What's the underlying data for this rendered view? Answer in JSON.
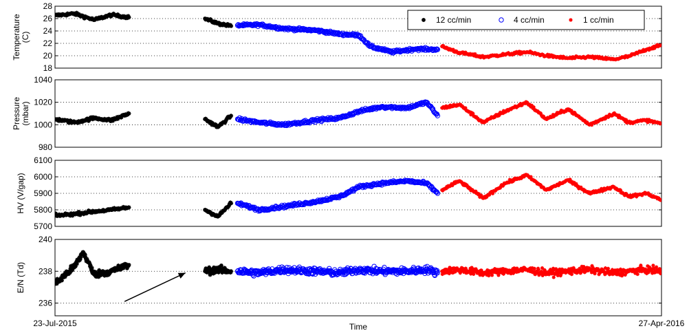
{
  "chart_data": {
    "type": "scatter",
    "xlabel": "Time",
    "x_start_label": "23-Jul-2015",
    "x_end_label": "27-Apr-2016",
    "x_range": [
      "2015-07-23",
      "2016-04-27"
    ],
    "grid": "horizontal dotted",
    "legend": {
      "placement": "top-right",
      "items": [
        {
          "label": "12 cc/min",
          "series": "12 cc/min",
          "color": "#000000",
          "marker": "star"
        },
        {
          "label": "4 cc/min",
          "series": "4 cc/min",
          "color": "#0000ff",
          "marker": "circle"
        },
        {
          "label": "1 cc/min",
          "series": "1 cc/min",
          "color": "#ff0000",
          "marker": "plus-star"
        }
      ]
    },
    "panels": [
      {
        "id": "temperature",
        "ylabel": "Temperature (C)",
        "ylabel_lines": [
          "Temperature",
          "(C)"
        ],
        "ylim": [
          18,
          28
        ],
        "yticks": [
          18,
          20,
          22,
          24,
          26,
          28
        ],
        "series": [
          {
            "name": "12 cc/min",
            "points": [
              [
                "2015-07-23",
                26.5
              ],
              [
                "2015-08-01",
                26.8
              ],
              [
                "2015-08-10",
                25.8
              ],
              [
                "2015-08-18",
                26.6
              ],
              [
                "2015-08-26",
                26.2
              ],
              [
                "2015-09-30",
                26.0
              ],
              [
                "2015-10-06",
                25.2
              ],
              [
                "2015-10-12",
                24.8
              ]
            ]
          },
          {
            "name": "4 cc/min",
            "points": [
              [
                "2015-10-15",
                24.9
              ],
              [
                "2015-10-25",
                25.0
              ],
              [
                "2015-11-05",
                24.4
              ],
              [
                "2015-11-20",
                24.1
              ],
              [
                "2015-12-01",
                23.5
              ],
              [
                "2015-12-10",
                23.3
              ],
              [
                "2015-12-15",
                21.5
              ],
              [
                "2015-12-25",
                20.6
              ],
              [
                "2016-01-05",
                21.1
              ],
              [
                "2016-01-15",
                21.0
              ]
            ]
          },
          {
            "name": "1 cc/min",
            "points": [
              [
                "2016-01-17",
                21.5
              ],
              [
                "2016-01-25",
                20.5
              ],
              [
                "2016-02-05",
                19.8
              ],
              [
                "2016-02-15",
                20.2
              ],
              [
                "2016-02-25",
                20.6
              ],
              [
                "2016-03-05",
                20.0
              ],
              [
                "2016-03-15",
                19.6
              ],
              [
                "2016-03-25",
                19.8
              ],
              [
                "2016-04-05",
                19.4
              ],
              [
                "2016-04-12",
                19.9
              ],
              [
                "2016-04-20",
                21.0
              ],
              [
                "2016-04-27",
                21.7
              ]
            ]
          }
        ]
      },
      {
        "id": "pressure",
        "ylabel": "Pressure (mbar)",
        "ylabel_lines": [
          "Pressure",
          "(mbar)"
        ],
        "ylim": [
          980,
          1040
        ],
        "yticks": [
          980,
          1000,
          1020,
          1040
        ],
        "series": [
          {
            "name": "12 cc/min",
            "points": [
              [
                "2015-07-23",
                1005
              ],
              [
                "2015-08-01",
                1002
              ],
              [
                "2015-08-10",
                1006
              ],
              [
                "2015-08-18",
                1004
              ],
              [
                "2015-08-26",
                1010
              ],
              [
                "2015-09-30",
                1005
              ],
              [
                "2015-10-06",
                998
              ],
              [
                "2015-10-12",
                1008
              ]
            ]
          },
          {
            "name": "4 cc/min",
            "points": [
              [
                "2015-10-15",
                1005
              ],
              [
                "2015-10-25",
                1002
              ],
              [
                "2015-11-05",
                1000
              ],
              [
                "2015-11-20",
                1004
              ],
              [
                "2015-12-01",
                1006
              ],
              [
                "2015-12-10",
                1012
              ],
              [
                "2015-12-20",
                1016
              ],
              [
                "2016-01-01",
                1015
              ],
              [
                "2016-01-10",
                1020
              ],
              [
                "2016-01-15",
                1008
              ]
            ]
          },
          {
            "name": "1 cc/min",
            "points": [
              [
                "2016-01-17",
                1015
              ],
              [
                "2016-01-25",
                1018
              ],
              [
                "2016-02-05",
                1002
              ],
              [
                "2016-02-15",
                1012
              ],
              [
                "2016-02-25",
                1020
              ],
              [
                "2016-03-05",
                1005
              ],
              [
                "2016-03-15",
                1014
              ],
              [
                "2016-03-25",
                1000
              ],
              [
                "2016-04-05",
                1010
              ],
              [
                "2016-04-12",
                1002
              ],
              [
                "2016-04-20",
                1004
              ],
              [
                "2016-04-27",
                1001
              ]
            ]
          }
        ]
      },
      {
        "id": "hv",
        "ylabel": "HV (V/gap)",
        "ylabel_lines": [
          "HV (V/gap)"
        ],
        "ylim": [
          5700,
          6100
        ],
        "yticks": [
          5700,
          5800,
          5900,
          6000,
          6100
        ],
        "series": [
          {
            "name": "12 cc/min",
            "points": [
              [
                "2015-07-23",
                5765
              ],
              [
                "2015-08-01",
                5775
              ],
              [
                "2015-08-10",
                5790
              ],
              [
                "2015-08-18",
                5800
              ],
              [
                "2015-08-26",
                5815
              ],
              [
                "2015-09-30",
                5800
              ],
              [
                "2015-10-06",
                5760
              ],
              [
                "2015-10-12",
                5840
              ]
            ]
          },
          {
            "name": "4 cc/min",
            "points": [
              [
                "2015-10-15",
                5840
              ],
              [
                "2015-10-25",
                5800
              ],
              [
                "2015-11-05",
                5820
              ],
              [
                "2015-11-20",
                5850
              ],
              [
                "2015-12-01",
                5880
              ],
              [
                "2015-12-10",
                5940
              ],
              [
                "2015-12-20",
                5960
              ],
              [
                "2016-01-01",
                5975
              ],
              [
                "2016-01-10",
                5960
              ],
              [
                "2016-01-15",
                5900
              ]
            ]
          },
          {
            "name": "1 cc/min",
            "points": [
              [
                "2016-01-17",
                5920
              ],
              [
                "2016-01-25",
                5975
              ],
              [
                "2016-02-05",
                5870
              ],
              [
                "2016-02-15",
                5960
              ],
              [
                "2016-02-25",
                6010
              ],
              [
                "2016-03-05",
                5920
              ],
              [
                "2016-03-15",
                5980
              ],
              [
                "2016-03-25",
                5900
              ],
              [
                "2016-04-05",
                5940
              ],
              [
                "2016-04-12",
                5880
              ],
              [
                "2016-04-20",
                5900
              ],
              [
                "2016-04-27",
                5860
              ]
            ]
          }
        ]
      },
      {
        "id": "en",
        "ylabel": "E/N (Td)",
        "ylabel_lines": [
          "E/N (Td)"
        ],
        "ylim": [
          235.2,
          240
        ],
        "yticks": [
          236,
          238,
          240
        ],
        "series": [
          {
            "name": "12 cc/min",
            "points": [
              [
                "2015-07-23",
                237.2
              ],
              [
                "2015-08-01",
                238.3
              ],
              [
                "2015-08-05",
                239.2
              ],
              [
                "2015-08-10",
                237.8
              ],
              [
                "2015-08-18",
                238.0
              ],
              [
                "2015-08-26",
                238.4
              ],
              [
                "2015-09-30",
                238.0
              ],
              [
                "2015-10-06",
                238.1
              ],
              [
                "2015-10-12",
                238.0
              ]
            ]
          },
          {
            "name": "4 cc/min",
            "points": [
              [
                "2015-10-15",
                238.0
              ],
              [
                "2015-10-25",
                237.9
              ],
              [
                "2015-11-05",
                238.1
              ],
              [
                "2015-11-20",
                238.0
              ],
              [
                "2015-12-01",
                237.9
              ],
              [
                "2015-12-10",
                238.1
              ],
              [
                "2015-12-20",
                238.0
              ],
              [
                "2016-01-01",
                238.0
              ],
              [
                "2016-01-10",
                238.1
              ],
              [
                "2016-01-15",
                237.9
              ]
            ]
          },
          {
            "name": "1 cc/min",
            "points": [
              [
                "2016-01-17",
                238.0
              ],
              [
                "2016-01-25",
                238.1
              ],
              [
                "2016-02-05",
                237.9
              ],
              [
                "2016-02-15",
                238.0
              ],
              [
                "2016-02-25",
                238.1
              ],
              [
                "2016-03-05",
                237.9
              ],
              [
                "2016-03-15",
                238.0
              ],
              [
                "2016-03-25",
                238.1
              ],
              [
                "2016-04-05",
                237.9
              ],
              [
                "2016-04-12",
                238.0
              ],
              [
                "2016-04-20",
                238.1
              ],
              [
                "2016-04-27",
                238.0
              ]
            ]
          }
        ],
        "annotation": {
          "type": "arrow",
          "from": [
            "2015-08-24",
            236.1
          ],
          "to": [
            "2015-09-21",
            237.9
          ]
        }
      }
    ]
  }
}
